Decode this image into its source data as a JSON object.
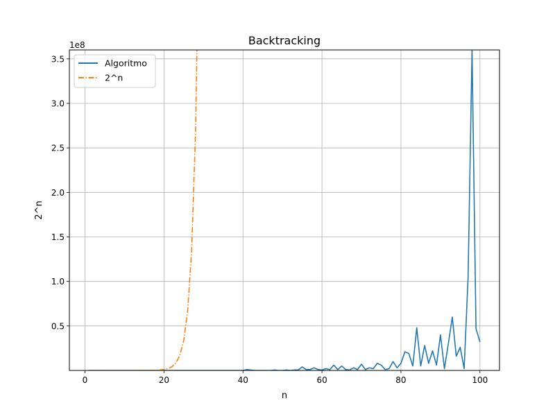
{
  "chart_data": {
    "type": "line",
    "title": "Backtracking",
    "xlabel": "n",
    "ylabel": "2^n",
    "offset_label": "1e8",
    "xlim": [
      -3.95,
      104.95
    ],
    "ylim": [
      0,
      3.6
    ],
    "y_scale_factor": 100000000,
    "xticks": [
      0,
      20,
      40,
      60,
      80,
      100
    ],
    "xtick_labels": [
      "0",
      "20",
      "40",
      "60",
      "80",
      "100"
    ],
    "yticks": [
      0.5,
      1.0,
      1.5,
      2.0,
      2.5,
      3.0,
      3.5
    ],
    "ytick_labels": [
      "0.5",
      "1.0",
      "1.5",
      "2.0",
      "2.5",
      "3.0",
      "3.5"
    ],
    "grid": true,
    "legend": {
      "position": "top-left"
    },
    "colors": {
      "Algoritmo": "#1f77b4",
      "2^n": "#ff7f0e"
    },
    "series": [
      {
        "name": "Algoritmo",
        "style": "solid",
        "x": [
          1,
          2,
          3,
          4,
          5,
          6,
          7,
          8,
          9,
          10,
          11,
          12,
          13,
          14,
          15,
          16,
          17,
          18,
          19,
          20,
          21,
          22,
          23,
          24,
          25,
          26,
          27,
          28,
          29,
          30,
          31,
          32,
          33,
          34,
          35,
          36,
          37,
          38,
          39,
          40,
          41,
          42,
          43,
          44,
          45,
          46,
          47,
          48,
          49,
          50,
          51,
          52,
          53,
          54,
          55,
          56,
          57,
          58,
          59,
          60,
          61,
          62,
          63,
          64,
          65,
          66,
          67,
          68,
          69,
          70,
          71,
          72,
          73,
          74,
          75,
          76,
          77,
          78,
          79,
          80,
          81,
          82,
          83,
          84,
          85,
          86,
          87,
          88,
          89,
          90,
          91,
          92,
          93,
          94,
          95,
          96,
          97,
          98,
          99,
          100
        ],
        "y": [
          0,
          0,
          0,
          0,
          0,
          0,
          0,
          0,
          0,
          0,
          0,
          0,
          0,
          0,
          0,
          0,
          0,
          0,
          0,
          0,
          0,
          0,
          0,
          0,
          0,
          0,
          0,
          0,
          0,
          0,
          0,
          0,
          0,
          0,
          0,
          0,
          0,
          0,
          0,
          0,
          0.01,
          0.005,
          0,
          0,
          0,
          0,
          0,
          0.005,
          0,
          0,
          0.005,
          0,
          0.005,
          0.005,
          0.04,
          0.01,
          0.01,
          0.03,
          0.01,
          0.005,
          0.02,
          0.01,
          0.06,
          0.01,
          0.05,
          0.01,
          0.005,
          0.03,
          0.01,
          0.07,
          0.01,
          0.03,
          0.02,
          0.08,
          0.06,
          0.01,
          0.02,
          0.1,
          0.03,
          0.08,
          0.21,
          0.19,
          0.05,
          0.48,
          0.05,
          0.28,
          0.08,
          0.22,
          0.06,
          0.4,
          0.02,
          0.3,
          0.6,
          0.16,
          0.26,
          0.02,
          1.05,
          3.6,
          0.47,
          0.32
        ]
      },
      {
        "name": "2^n",
        "style": "dashdot",
        "x": [
          1,
          2,
          3,
          4,
          5,
          6,
          7,
          8,
          9,
          10,
          11,
          12,
          13,
          14,
          15,
          16,
          17,
          18,
          19,
          20,
          21,
          22,
          23,
          24,
          25,
          26,
          27,
          28,
          29
        ],
        "y": [
          2e-08,
          4e-08,
          8e-08,
          1.6e-07,
          3.2e-07,
          6.4e-07,
          1.28e-06,
          2.56e-06,
          5.12e-06,
          1.024e-05,
          2.048e-05,
          4.096e-05,
          8.192e-05,
          0.00016384,
          0.00032768,
          0.00065536,
          0.00131072,
          0.00262144,
          0.00524288,
          0.01048576,
          0.02097152,
          0.04194304,
          0.08388608,
          0.16777216,
          0.33554432,
          0.67108864,
          1.34217728,
          2.68435456,
          5.36870912
        ]
      }
    ]
  }
}
